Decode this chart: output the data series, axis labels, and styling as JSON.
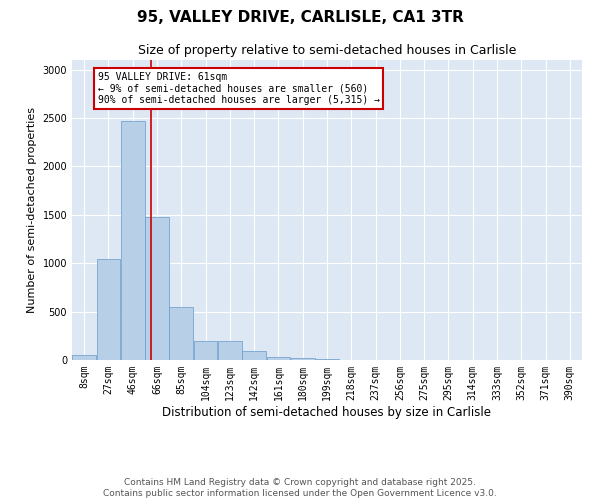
{
  "title": "95, VALLEY DRIVE, CARLISLE, CA1 3TR",
  "subtitle": "Size of property relative to semi-detached houses in Carlisle",
  "xlabel": "Distribution of semi-detached houses by size in Carlisle",
  "ylabel": "Number of semi-detached properties",
  "footer1": "Contains HM Land Registry data © Crown copyright and database right 2025.",
  "footer2": "Contains public sector information licensed under the Open Government Licence v3.0.",
  "annotation_title": "95 VALLEY DRIVE: 61sqm",
  "annotation_line1": "← 9% of semi-detached houses are smaller (560)",
  "annotation_line2": "90% of semi-detached houses are larger (5,315) →",
  "bar_labels": [
    "8sqm",
    "27sqm",
    "46sqm",
    "66sqm",
    "85sqm",
    "104sqm",
    "123sqm",
    "142sqm",
    "161sqm",
    "180sqm",
    "199sqm",
    "218sqm",
    "237sqm",
    "256sqm",
    "275sqm",
    "295sqm",
    "314sqm",
    "333sqm",
    "352sqm",
    "371sqm",
    "390sqm"
  ],
  "bar_centers": [
    0,
    1,
    2,
    3,
    4,
    5,
    6,
    7,
    8,
    9,
    10,
    11,
    12,
    13,
    14,
    15,
    16,
    17,
    18,
    19,
    20
  ],
  "bar_heights": [
    55,
    1045,
    2470,
    1480,
    545,
    195,
    195,
    90,
    35,
    20,
    10,
    5,
    2,
    2,
    2,
    2,
    1,
    1,
    1,
    1,
    0
  ],
  "bar_color": "#b8cfe8",
  "bar_edge_color": "#6699cc",
  "vline_bar_idx": 2.7,
  "vline_color": "#cc0000",
  "annotation_box_color": "#cc0000",
  "ylim": [
    0,
    3100
  ],
  "yticks": [
    0,
    500,
    1000,
    1500,
    2000,
    2500,
    3000
  ],
  "bg_color": "#dde8f4",
  "grid_color": "#ffffff",
  "title_fontsize": 11,
  "subtitle_fontsize": 9,
  "axis_label_fontsize": 8,
  "tick_fontsize": 7,
  "footer_fontsize": 6.5,
  "ann_fontsize": 7
}
